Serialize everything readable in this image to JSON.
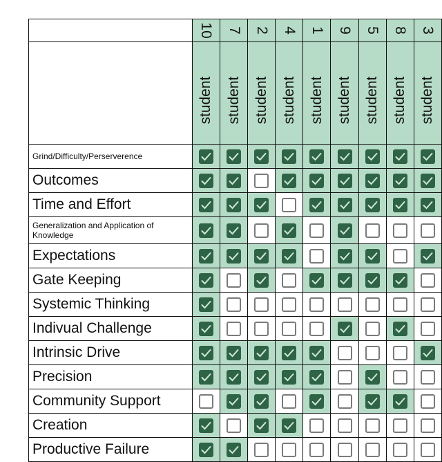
{
  "header": {
    "numbers": [
      "10",
      "7",
      "2",
      "4",
      "1",
      "9",
      "5",
      "8",
      "3"
    ],
    "student_label": "student"
  },
  "colors": {
    "checked_fill": "#2e6346",
    "checked_cell": "#b6dcc8",
    "unchecked_border": "#7a7a7a"
  },
  "rows": [
    {
      "label": "Grind/Difficulty/Perserverence",
      "size": "small",
      "checks": [
        1,
        1,
        1,
        1,
        1,
        1,
        1,
        1,
        1
      ]
    },
    {
      "label": "Outcomes",
      "size": "big",
      "checks": [
        1,
        1,
        0,
        1,
        1,
        1,
        1,
        1,
        1
      ]
    },
    {
      "label": "Time and Effort",
      "size": "big",
      "checks": [
        1,
        1,
        1,
        0,
        1,
        1,
        1,
        1,
        1
      ]
    },
    {
      "label": "Generalization  and Application of Knowledge",
      "size": "small",
      "checks": [
        1,
        1,
        0,
        1,
        0,
        1,
        0,
        0,
        0
      ]
    },
    {
      "label": "Expectations",
      "size": "big",
      "checks": [
        1,
        1,
        1,
        1,
        0,
        1,
        1,
        0,
        1
      ]
    },
    {
      "label": "Gate Keeping",
      "size": "big",
      "checks": [
        1,
        0,
        1,
        0,
        1,
        1,
        1,
        1,
        0
      ]
    },
    {
      "label": "Systemic Thinking",
      "size": "big",
      "checks": [
        1,
        0,
        0,
        0,
        0,
        0,
        0,
        0,
        0
      ]
    },
    {
      "label": "Indivual Challenge",
      "size": "big",
      "checks": [
        1,
        0,
        0,
        0,
        0,
        1,
        0,
        1,
        0
      ]
    },
    {
      "label": "Intrinsic Drive",
      "size": "big",
      "checks": [
        1,
        1,
        1,
        1,
        1,
        0,
        0,
        0,
        1
      ]
    },
    {
      "label": "Precision",
      "size": "big",
      "checks": [
        1,
        1,
        1,
        1,
        1,
        0,
        1,
        0,
        0
      ]
    },
    {
      "label": "Community Support",
      "size": "big",
      "checks": [
        0,
        1,
        1,
        0,
        1,
        0,
        1,
        1,
        0
      ]
    },
    {
      "label": "Creation",
      "size": "big",
      "checks": [
        1,
        0,
        1,
        1,
        0,
        0,
        0,
        0,
        0
      ]
    },
    {
      "label": "Productive Failure",
      "size": "big",
      "checks": [
        1,
        1,
        0,
        0,
        0,
        0,
        0,
        0,
        0
      ]
    }
  ]
}
